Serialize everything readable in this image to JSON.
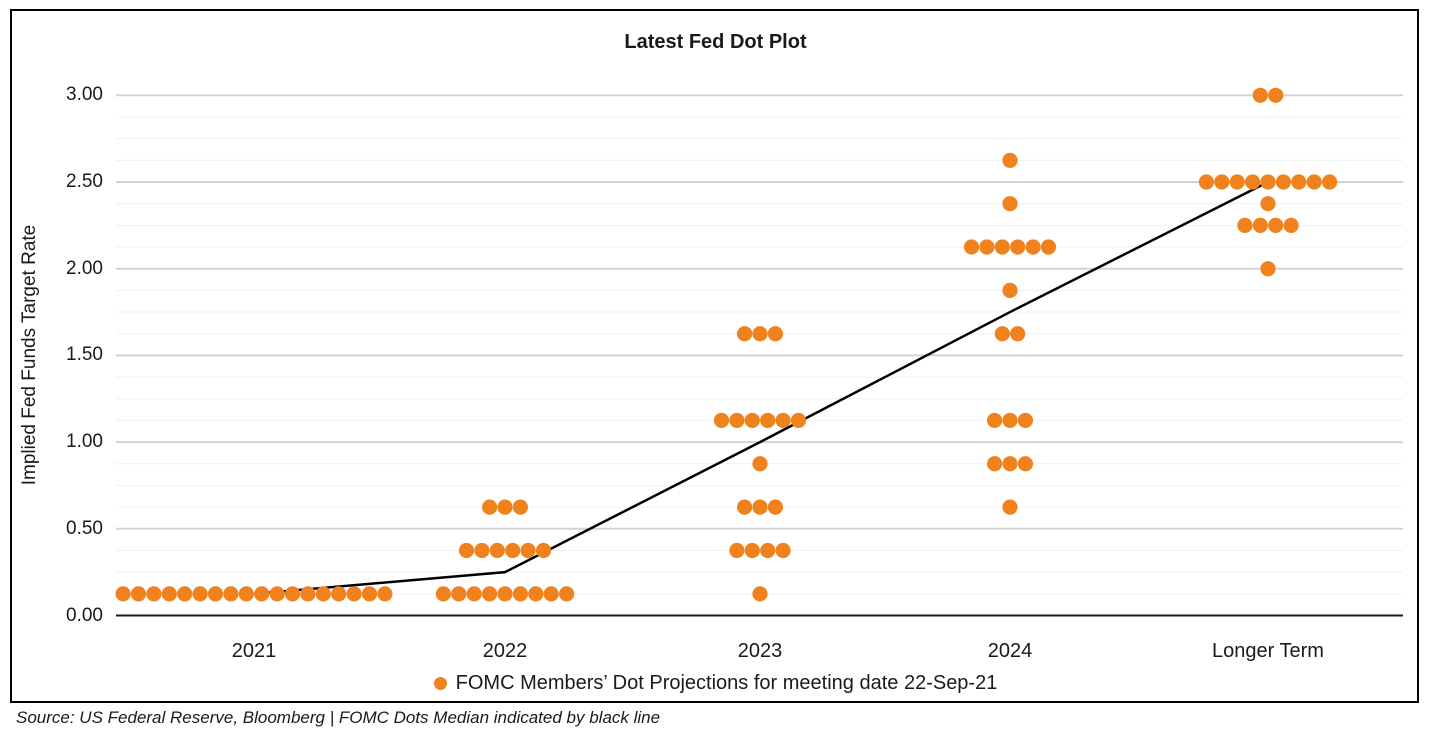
{
  "title": "Latest Fed Dot Plot",
  "source_note": "Source: US Federal Reserve, Bloomberg | FOMC Dots Median indicated by black line",
  "legend": {
    "marker": "orange-dot",
    "label": "FOMC Members’ Dot Projections for meeting date 22-Sep-21"
  },
  "colors": {
    "dot": "#F0821E",
    "median_line": "#000000",
    "major_grid": "#d3d3d3",
    "minor_grid": "#f0f0f0",
    "axis_line": "#1a1a1a",
    "border": "#000000",
    "text": "#1a1a1a"
  },
  "chart_data": {
    "type": "scatter",
    "title": "Latest Fed Dot Plot",
    "xlabel": "",
    "ylabel": "Implied Fed Funds Target Rate",
    "ylim": [
      0,
      3.0
    ],
    "ytick_step": 0.5,
    "minor_ytick_step": 0.125,
    "yticks": [
      "0.00",
      "0.50",
      "1.00",
      "1.50",
      "2.00",
      "2.50",
      "3.00"
    ],
    "categories": [
      "2021",
      "2022",
      "2023",
      "2024",
      "Longer Term"
    ],
    "grid": "horizontal-major-and-minor",
    "legend_position": "bottom",
    "series": [
      {
        "name": "FOMC Members’ Dot Projections for meeting date 22-Sep-21",
        "marker": "circle",
        "clusters": [
          {
            "category": "2021",
            "dots": [
              {
                "value": 0.125,
                "count": 18
              }
            ]
          },
          {
            "category": "2022",
            "dots": [
              {
                "value": 0.625,
                "count": 3
              },
              {
                "value": 0.375,
                "count": 6
              },
              {
                "value": 0.125,
                "count": 9
              }
            ]
          },
          {
            "category": "2023",
            "dots": [
              {
                "value": 1.625,
                "count": 3
              },
              {
                "value": 1.125,
                "count": 6
              },
              {
                "value": 0.875,
                "count": 1
              },
              {
                "value": 0.625,
                "count": 3
              },
              {
                "value": 0.375,
                "count": 4
              },
              {
                "value": 0.125,
                "count": 1
              }
            ]
          },
          {
            "category": "2024",
            "dots": [
              {
                "value": 2.625,
                "count": 1
              },
              {
                "value": 2.375,
                "count": 1
              },
              {
                "value": 2.125,
                "count": 6
              },
              {
                "value": 1.875,
                "count": 1
              },
              {
                "value": 1.625,
                "count": 2
              },
              {
                "value": 1.125,
                "count": 3
              },
              {
                "value": 0.875,
                "count": 3
              },
              {
                "value": 0.625,
                "count": 1
              }
            ]
          },
          {
            "category": "Longer Term",
            "dots": [
              {
                "value": 3.0,
                "count": 2
              },
              {
                "value": 2.5,
                "count": 9
              },
              {
                "value": 2.375,
                "count": 1
              },
              {
                "value": 2.25,
                "count": 4
              },
              {
                "value": 2.0,
                "count": 1
              }
            ]
          }
        ]
      }
    ],
    "median_line": {
      "name": "FOMC Dots Median",
      "points": [
        {
          "category": "2021",
          "value": 0.125
        },
        {
          "category": "2022",
          "value": 0.25
        },
        {
          "category": "2023",
          "value": 1.0
        },
        {
          "category": "2024",
          "value": 1.75
        },
        {
          "category": "Longer Term",
          "value": 2.5
        }
      ]
    }
  }
}
